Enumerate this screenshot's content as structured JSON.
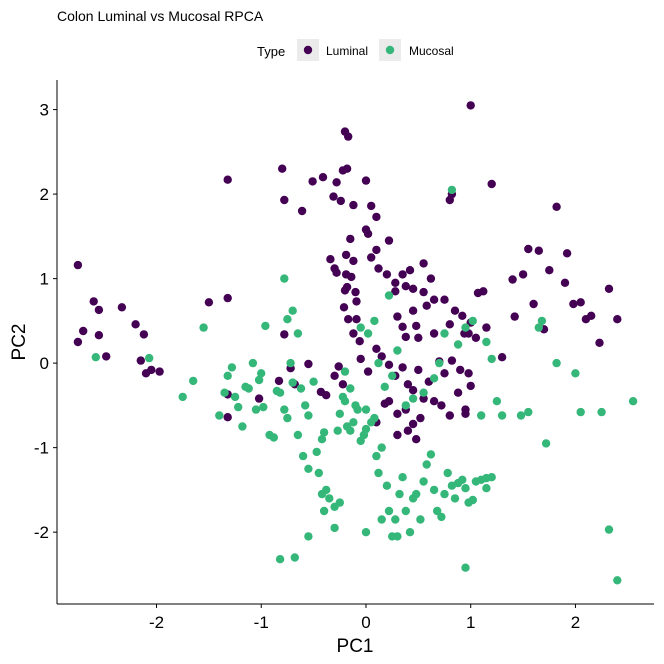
{
  "chart_data": {
    "type": "scatter",
    "title": "Colon Luminal vs Mucosal RPCA",
    "xlabel": "PC1",
    "ylabel": "PC2",
    "xlim": [
      -2.95,
      2.75
    ],
    "ylim": [
      -2.85,
      3.35
    ],
    "xticks": [
      -2,
      -1,
      0,
      1,
      2
    ],
    "yticks": [
      -2,
      -1,
      0,
      1,
      2,
      3
    ],
    "grid": false,
    "legend": {
      "title": "Type",
      "position": "top",
      "entries": [
        {
          "label": "Luminal",
          "color": "#440154"
        },
        {
          "label": "Mucosal",
          "color": "#35b779"
        }
      ]
    },
    "series": [
      {
        "name": "Luminal",
        "color": "#440154",
        "points": [
          [
            -2.75,
            1.16
          ],
          [
            -2.6,
            0.73
          ],
          [
            -2.55,
            0.33
          ],
          [
            -2.7,
            0.38
          ],
          [
            -2.75,
            0.25
          ],
          [
            -2.55,
            0.63
          ],
          [
            -2.48,
            0.08
          ],
          [
            -2.33,
            0.66
          ],
          [
            -2.2,
            0.46
          ],
          [
            -2.12,
            0.34
          ],
          [
            -2.15,
            0.03
          ],
          [
            -2.05,
            -0.08
          ],
          [
            -2.1,
            -0.12
          ],
          [
            -1.97,
            -0.1
          ],
          [
            -1.5,
            0.72
          ],
          [
            -1.32,
            0.77
          ],
          [
            -1.32,
            2.17
          ],
          [
            -1.32,
            -0.37
          ],
          [
            -1.32,
            -0.64
          ],
          [
            -1.02,
            -0.42
          ],
          [
            -0.83,
            -0.21
          ],
          [
            -0.78,
            0.34
          ],
          [
            -0.72,
            -0.06
          ],
          [
            -0.68,
            -0.25
          ],
          [
            -0.55,
            -0.01
          ],
          [
            -0.43,
            -0.34
          ],
          [
            -0.38,
            -0.38
          ],
          [
            -0.3,
            -0.15
          ],
          [
            -0.26,
            -0.04
          ],
          [
            -0.22,
            -0.25
          ],
          [
            -0.8,
            2.3
          ],
          [
            -0.78,
            1.93
          ],
          [
            -0.61,
            1.8
          ],
          [
            -0.51,
            2.15
          ],
          [
            -0.41,
            2.2
          ],
          [
            -0.28,
            2.14
          ],
          [
            -0.31,
            1.97
          ],
          [
            -0.34,
            1.23
          ],
          [
            -0.3,
            1.12
          ],
          [
            -0.28,
            1.07
          ],
          [
            -0.24,
            1.92
          ],
          [
            -0.2,
            2.74
          ],
          [
            -0.18,
            2.3
          ],
          [
            -0.22,
            2.28
          ],
          [
            -0.17,
            2.68
          ],
          [
            -0.12,
            1.87
          ],
          [
            -0.15,
            1.47
          ],
          [
            -0.19,
            1.28
          ],
          [
            -0.12,
            1.21
          ],
          [
            -0.19,
            1.05
          ],
          [
            -0.14,
            1.02
          ],
          [
            -0.18,
            0.9
          ],
          [
            -0.1,
            0.84
          ],
          [
            -0.2,
            0.86
          ],
          [
            -0.09,
            0.73
          ],
          [
            -0.21,
            0.66
          ],
          [
            -0.17,
            0.52
          ],
          [
            -0.09,
            0.52
          ],
          [
            -0.12,
            0.35
          ],
          [
            -0.06,
            0.26
          ],
          [
            0.0,
            2.16
          ],
          [
            0.05,
            1.86
          ],
          [
            0.1,
            1.73
          ],
          [
            0.02,
            1.53
          ],
          [
            0.1,
            1.34
          ],
          [
            0.2,
            1.05
          ],
          [
            0.28,
            0.95
          ],
          [
            0.38,
            0.91
          ],
          [
            0.42,
            1.1
          ],
          [
            0.45,
            0.88
          ],
          [
            0.55,
            0.84
          ],
          [
            0.3,
            0.55
          ],
          [
            0.35,
            0.43
          ],
          [
            0.38,
            0.31
          ],
          [
            0.48,
            0.44
          ],
          [
            0.55,
            1.18
          ],
          [
            0.62,
            1.0
          ],
          [
            0.65,
            0.75
          ],
          [
            0.75,
            0.75
          ],
          [
            0.8,
            0.46
          ],
          [
            0.85,
            0.62
          ],
          [
            0.92,
            0.56
          ],
          [
            0.94,
            0.35
          ],
          [
            0.98,
            0.35
          ],
          [
            1.0,
            0.48
          ],
          [
            1.05,
            0.3
          ],
          [
            1.15,
            0.42
          ],
          [
            1.2,
            2.12
          ],
          [
            1.0,
            3.05
          ],
          [
            0.82,
            2.0
          ],
          [
            0.8,
            1.93
          ],
          [
            0.0,
            1.58
          ],
          [
            0.05,
            1.25
          ],
          [
            0.12,
            1.12
          ],
          [
            0.22,
            1.45
          ],
          [
            0.28,
            0.85
          ],
          [
            0.35,
            1.05
          ],
          [
            0.45,
            0.62
          ],
          [
            0.5,
            0.3
          ],
          [
            0.58,
            0.68
          ],
          [
            0.65,
            0.35
          ],
          [
            0.7,
            0.02
          ],
          [
            0.75,
            -0.12
          ],
          [
            0.82,
            0.03
          ],
          [
            0.9,
            -0.08
          ],
          [
            0.98,
            -0.12
          ],
          [
            0.15,
            0.08
          ],
          [
            0.22,
            -0.02
          ],
          [
            0.28,
            -0.15
          ],
          [
            0.35,
            -0.05
          ],
          [
            0.4,
            -0.25
          ],
          [
            0.5,
            -0.08
          ],
          [
            0.45,
            -0.32
          ],
          [
            0.55,
            -0.42
          ],
          [
            0.6,
            -0.22
          ],
          [
            0.65,
            -0.45
          ],
          [
            0.72,
            -0.5
          ],
          [
            0.8,
            -0.62
          ],
          [
            0.88,
            -0.35
          ],
          [
            0.95,
            -0.6
          ],
          [
            0.22,
            -0.45
          ],
          [
            0.3,
            -0.6
          ],
          [
            0.38,
            -0.55
          ],
          [
            0.45,
            -0.72
          ],
          [
            0.52,
            -0.65
          ],
          [
            0.4,
            -0.8
          ],
          [
            0.48,
            -0.9
          ],
          [
            0.3,
            -0.85
          ],
          [
            0.1,
            -0.7
          ],
          [
            0.18,
            -0.48
          ],
          [
            0.02,
            -0.1
          ],
          [
            -0.05,
            0.05
          ],
          [
            0.1,
            0.17
          ],
          [
            1.0,
            -0.27
          ],
          [
            0.95,
            -0.55
          ],
          [
            1.07,
            0.83
          ],
          [
            1.12,
            0.85
          ],
          [
            1.3,
            0.07
          ],
          [
            1.4,
            0.99
          ],
          [
            1.5,
            1.05
          ],
          [
            1.42,
            0.55
          ],
          [
            1.55,
            1.35
          ],
          [
            1.65,
            1.33
          ],
          [
            1.82,
            1.85
          ],
          [
            1.92,
            1.3
          ],
          [
            1.75,
            1.1
          ],
          [
            1.6,
            0.7
          ],
          [
            1.7,
            0.4
          ],
          [
            1.9,
            0.95
          ],
          [
            1.98,
            0.7
          ],
          [
            2.05,
            0.72
          ],
          [
            2.1,
            0.52
          ],
          [
            2.15,
            0.56
          ],
          [
            2.23,
            0.24
          ],
          [
            2.32,
            0.88
          ],
          [
            2.4,
            0.52
          ]
        ]
      },
      {
        "name": "Mucosal",
        "color": "#35b779",
        "points": [
          [
            -2.58,
            0.07
          ],
          [
            -2.07,
            0.06
          ],
          [
            -1.75,
            -0.4
          ],
          [
            -1.65,
            -0.21
          ],
          [
            -1.55,
            0.42
          ],
          [
            -1.4,
            -0.62
          ],
          [
            -1.35,
            -0.35
          ],
          [
            -1.32,
            -0.15
          ],
          [
            -1.28,
            -0.05
          ],
          [
            -1.25,
            -0.4
          ],
          [
            -1.22,
            -0.52
          ],
          [
            -1.18,
            -0.75
          ],
          [
            -1.15,
            -0.28
          ],
          [
            -1.12,
            -0.3
          ],
          [
            -1.08,
            0.0
          ],
          [
            -1.05,
            -0.55
          ],
          [
            -1.02,
            -0.2
          ],
          [
            -1.0,
            -0.12
          ],
          [
            -0.98,
            -0.52
          ],
          [
            -0.96,
            0.44
          ],
          [
            -0.92,
            -0.85
          ],
          [
            -0.88,
            -0.88
          ],
          [
            -0.85,
            -0.33
          ],
          [
            -0.82,
            -0.35
          ],
          [
            -0.78,
            -0.55
          ],
          [
            -0.75,
            -0.65
          ],
          [
            -0.72,
            0.0
          ],
          [
            -0.7,
            -0.23
          ],
          [
            -0.78,
            1.0
          ],
          [
            -0.75,
            0.52
          ],
          [
            -0.7,
            0.62
          ],
          [
            -0.65,
            0.35
          ],
          [
            -0.62,
            -0.3
          ],
          [
            -0.58,
            -0.5
          ],
          [
            -0.55,
            -0.62
          ],
          [
            -0.5,
            -0.22
          ],
          [
            -0.47,
            -1.05
          ],
          [
            -0.45,
            -1.3
          ],
          [
            -0.42,
            -1.55
          ],
          [
            -0.38,
            -1.5
          ],
          [
            -0.35,
            -1.6
          ],
          [
            -0.3,
            -1.7
          ],
          [
            -0.27,
            -0.8
          ],
          [
            -0.25,
            -0.6
          ],
          [
            -0.22,
            -0.4
          ],
          [
            -0.2,
            -0.45
          ],
          [
            -0.18,
            -0.75
          ],
          [
            -0.15,
            -0.8
          ],
          [
            -0.12,
            -0.7
          ],
          [
            -0.08,
            -0.55
          ],
          [
            -0.05,
            -0.92
          ],
          [
            -0.02,
            -0.85
          ],
          [
            0.0,
            -0.55
          ],
          [
            0.05,
            -0.7
          ],
          [
            0.08,
            -0.65
          ],
          [
            0.1,
            -1.1
          ],
          [
            0.12,
            -1.3
          ],
          [
            0.15,
            -1.0
          ],
          [
            0.2,
            -1.45
          ],
          [
            0.22,
            -1.75
          ],
          [
            0.25,
            -2.05
          ],
          [
            0.28,
            -1.85
          ],
          [
            0.32,
            -1.55
          ],
          [
            0.35,
            -1.35
          ],
          [
            0.38,
            -1.75
          ],
          [
            0.42,
            -2.0
          ],
          [
            0.45,
            -1.6
          ],
          [
            0.48,
            -1.55
          ],
          [
            0.52,
            -1.85
          ],
          [
            0.55,
            -1.4
          ],
          [
            0.58,
            -1.2
          ],
          [
            0.62,
            -1.08
          ],
          [
            0.65,
            -1.5
          ],
          [
            0.68,
            -1.75
          ],
          [
            0.72,
            -1.82
          ],
          [
            0.75,
            -1.55
          ],
          [
            0.78,
            -1.3
          ],
          [
            0.82,
            -1.45
          ],
          [
            0.85,
            -1.6
          ],
          [
            0.88,
            -1.42
          ],
          [
            0.92,
            -1.38
          ],
          [
            0.95,
            -1.48
          ],
          [
            0.98,
            -1.65
          ],
          [
            1.02,
            -1.62
          ],
          [
            1.05,
            -1.4
          ],
          [
            1.1,
            -1.38
          ],
          [
            1.15,
            -1.36
          ],
          [
            1.2,
            -1.35
          ],
          [
            0.0,
            -0.78
          ],
          [
            -0.1,
            -0.5
          ],
          [
            -0.15,
            -0.3
          ],
          [
            -0.2,
            -0.1
          ],
          [
            0.02,
            0.35
          ],
          [
            -0.05,
            0.42
          ],
          [
            0.08,
            0.5
          ],
          [
            0.22,
            0.8
          ],
          [
            0.12,
            0.0
          ],
          [
            0.18,
            -0.28
          ],
          [
            0.25,
            -0.15
          ],
          [
            0.3,
            0.15
          ],
          [
            0.82,
            2.05
          ],
          [
            0.95,
            0.42
          ],
          [
            1.02,
            0.5
          ],
          [
            0.88,
            0.22
          ],
          [
            0.75,
            0.35
          ],
          [
            0.7,
            0.0
          ],
          [
            0.65,
            -0.18
          ],
          [
            0.55,
            -0.35
          ],
          [
            0.45,
            -0.42
          ],
          [
            0.38,
            -0.5
          ],
          [
            1.15,
            0.25
          ],
          [
            1.2,
            0.05
          ],
          [
            1.25,
            -0.45
          ],
          [
            1.3,
            -0.62
          ],
          [
            1.48,
            -0.62
          ],
          [
            1.55,
            -0.58
          ],
          [
            1.65,
            0.42
          ],
          [
            1.68,
            0.5
          ],
          [
            1.72,
            -0.95
          ],
          [
            1.82,
            0.0
          ],
          [
            2.0,
            -0.12
          ],
          [
            2.05,
            -0.58
          ],
          [
            2.25,
            -0.58
          ],
          [
            2.32,
            -1.97
          ],
          [
            2.4,
            -2.57
          ],
          [
            2.55,
            -0.45
          ],
          [
            1.1,
            -0.62
          ],
          [
            1.15,
            -1.48
          ],
          [
            -0.4,
            -0.82
          ],
          [
            -0.25,
            -1.65
          ],
          [
            -0.55,
            -2.05
          ],
          [
            -0.68,
            -2.3
          ],
          [
            -0.82,
            -2.32
          ],
          [
            0.0,
            -2.0
          ],
          [
            0.3,
            -2.05
          ],
          [
            0.95,
            -2.42
          ],
          [
            -0.3,
            -1.95
          ],
          [
            -0.4,
            -1.75
          ],
          [
            0.15,
            -1.85
          ],
          [
            -0.6,
            -1.1
          ],
          [
            -0.65,
            -0.85
          ],
          [
            -0.55,
            -1.25
          ],
          [
            -0.42,
            -0.9
          ]
        ]
      }
    ]
  }
}
